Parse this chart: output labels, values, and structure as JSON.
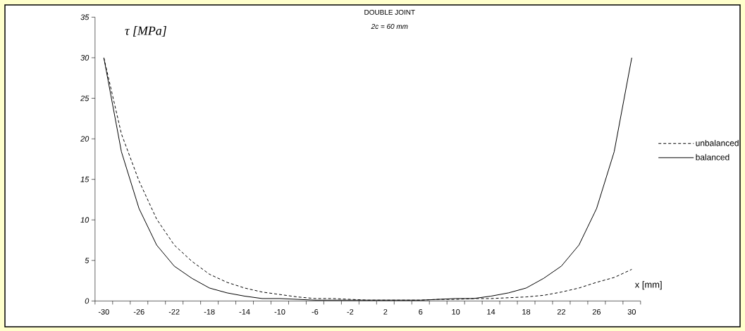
{
  "chart_data": {
    "type": "line",
    "title": "DOUBLE JOINT",
    "subtitle": "2c = 60 mm",
    "xlabel": "x [mm]",
    "ylabel": "τ [MPa]",
    "categories": [
      "-30",
      null,
      "-26",
      null,
      "-22",
      null,
      "-18",
      null,
      "-14",
      null,
      "-10",
      null,
      "-6",
      null,
      "-2",
      null,
      "2",
      null,
      "6",
      null,
      "10",
      null,
      "14",
      null,
      "18",
      null,
      "22",
      null,
      "26",
      null,
      "30"
    ],
    "series": [
      {
        "name": "unbalanced",
        "color": "#000000",
        "line_style": "dashed",
        "values": [
          30,
          20.6,
          14.8,
          10.1,
          6.9,
          4.9,
          3.3,
          2.3,
          1.6,
          1.1,
          0.8,
          0.5,
          0.3,
          0.3,
          0.2,
          0.1,
          0.1,
          0.1,
          0.1,
          0.2,
          0.2,
          0.3,
          0.3,
          0.4,
          0.5,
          0.7,
          1.1,
          1.6,
          2.3,
          2.9,
          3.9
        ]
      },
      {
        "name": "balanced",
        "color": "#000000",
        "line_style": "solid",
        "values": [
          30,
          18.4,
          11.4,
          6.9,
          4.3,
          2.8,
          1.6,
          1.0,
          0.6,
          0.3,
          0.3,
          0.2,
          0.1,
          0.1,
          0.1,
          0.1,
          0.1,
          0.1,
          0.1,
          0.2,
          0.3,
          0.3,
          0.6,
          1.0,
          1.6,
          2.8,
          4.3,
          6.9,
          11.4,
          18.4,
          30
        ]
      }
    ],
    "ylim": [
      0,
      35
    ],
    "yticks": [
      0,
      5,
      10,
      15,
      20,
      25,
      30,
      35
    ],
    "legend": "right"
  }
}
